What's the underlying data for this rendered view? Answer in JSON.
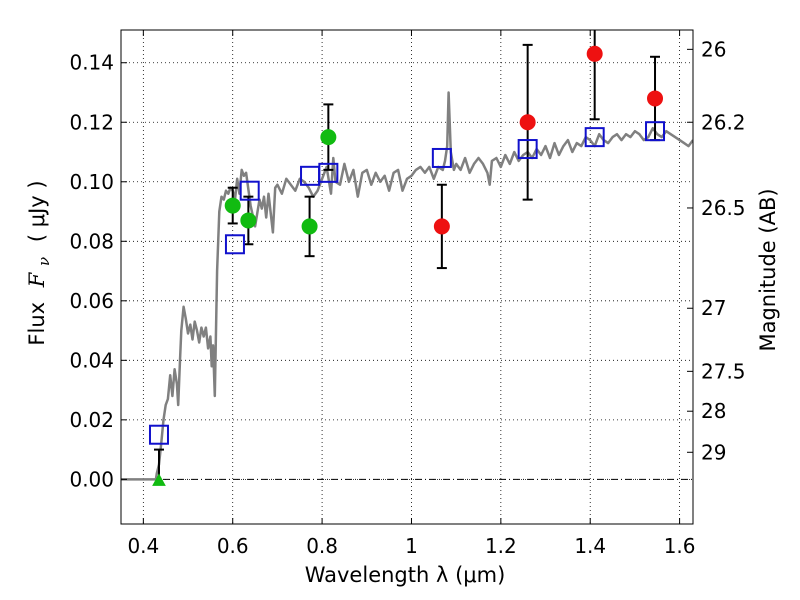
{
  "chart_data": {
    "type": "scatter",
    "title": "",
    "xlabel": "Wavelength  λ (μm)",
    "ylabel_text": "Flux",
    "ylabel_symbol": "F",
    "ylabel_subscript": "ν",
    "ylabel_unit": "( μJy )",
    "y2label": "Magnitude (AB)",
    "xlim": [
      0.35,
      1.63
    ],
    "ylim": [
      -0.015,
      0.151
    ],
    "grid": true,
    "x_ticks": [
      {
        "value": 0.4,
        "label": "0.4"
      },
      {
        "value": 0.6,
        "label": "0.6"
      },
      {
        "value": 0.8,
        "label": "0.8"
      },
      {
        "value": 1.0,
        "label": "1"
      },
      {
        "value": 1.2,
        "label": "1.2"
      },
      {
        "value": 1.4,
        "label": "1.4"
      },
      {
        "value": 1.6,
        "label": "1.6"
      }
    ],
    "y_ticks": [
      {
        "value": 0.0,
        "label": "0.00"
      },
      {
        "value": 0.02,
        "label": "0.02"
      },
      {
        "value": 0.04,
        "label": "0.04"
      },
      {
        "value": 0.06,
        "label": "0.06"
      },
      {
        "value": 0.08,
        "label": "0.08"
      },
      {
        "value": 0.1,
        "label": "0.10"
      },
      {
        "value": 0.12,
        "label": "0.12"
      },
      {
        "value": 0.14,
        "label": "0.14"
      }
    ],
    "y2_ticks": [
      {
        "flux": 0.1445,
        "label": "26"
      },
      {
        "flux": 0.12,
        "label": "26.2"
      },
      {
        "flux": 0.0912,
        "label": "26.5"
      },
      {
        "flux": 0.0575,
        "label": "27"
      },
      {
        "flux": 0.0363,
        "label": "27.5"
      },
      {
        "flux": 0.0229,
        "label": "28"
      },
      {
        "flux": 0.0091,
        "label": "29"
      }
    ],
    "zero_line": 0.0,
    "series": [
      {
        "kind": "model_sed",
        "color": "#808080",
        "x": [
          0.35,
          0.428,
          0.43,
          0.435,
          0.44,
          0.445,
          0.45,
          0.455,
          0.46,
          0.465,
          0.47,
          0.475,
          0.478,
          0.482,
          0.485,
          0.49,
          0.495,
          0.5,
          0.505,
          0.51,
          0.515,
          0.52,
          0.525,
          0.53,
          0.535,
          0.54,
          0.545,
          0.55,
          0.553,
          0.556,
          0.56,
          0.565,
          0.57,
          0.575,
          0.58,
          0.585,
          0.59,
          0.595,
          0.6,
          0.605,
          0.61,
          0.615,
          0.62,
          0.625,
          0.63,
          0.64,
          0.65,
          0.66,
          0.665,
          0.67,
          0.675,
          0.68,
          0.69,
          0.695,
          0.7,
          0.71,
          0.72,
          0.73,
          0.74,
          0.75,
          0.76,
          0.77,
          0.78,
          0.79,
          0.8,
          0.81,
          0.82,
          0.825,
          0.83,
          0.84,
          0.85,
          0.86,
          0.87,
          0.88,
          0.89,
          0.9,
          0.91,
          0.92,
          0.93,
          0.94,
          0.95,
          0.96,
          0.97,
          0.98,
          0.99,
          1.0,
          1.01,
          1.02,
          1.03,
          1.04,
          1.05,
          1.06,
          1.07,
          1.075,
          1.08,
          1.083,
          1.088,
          1.095,
          1.1,
          1.11,
          1.12,
          1.13,
          1.14,
          1.15,
          1.16,
          1.17,
          1.175,
          1.18,
          1.19,
          1.2,
          1.21,
          1.22,
          1.23,
          1.24,
          1.25,
          1.26,
          1.27,
          1.28,
          1.29,
          1.3,
          1.31,
          1.32,
          1.33,
          1.34,
          1.35,
          1.36,
          1.37,
          1.38,
          1.39,
          1.4,
          1.41,
          1.42,
          1.43,
          1.44,
          1.45,
          1.46,
          1.47,
          1.48,
          1.49,
          1.5,
          1.51,
          1.52,
          1.53,
          1.54,
          1.55,
          1.56,
          1.57,
          1.58,
          1.59,
          1.6,
          1.61,
          1.62,
          1.63
        ],
        "y": [
          0.0,
          0.0,
          0.002,
          0.005,
          0.012,
          0.02,
          0.025,
          0.027,
          0.035,
          0.028,
          0.037,
          0.032,
          0.025,
          0.04,
          0.05,
          0.058,
          0.054,
          0.049,
          0.052,
          0.047,
          0.053,
          0.05,
          0.046,
          0.051,
          0.048,
          0.051,
          0.044,
          0.048,
          0.038,
          0.045,
          0.028,
          0.07,
          0.09,
          0.095,
          0.094,
          0.097,
          0.096,
          0.098,
          0.097,
          0.094,
          0.101,
          0.096,
          0.104,
          0.102,
          0.103,
          0.092,
          0.085,
          0.094,
          0.091,
          0.095,
          0.088,
          0.096,
          0.083,
          0.098,
          0.099,
          0.096,
          0.101,
          0.099,
          0.097,
          0.101,
          0.1,
          0.098,
          0.095,
          0.097,
          0.101,
          0.105,
          0.096,
          0.108,
          0.1,
          0.099,
          0.106,
          0.1,
          0.104,
          0.095,
          0.103,
          0.104,
          0.099,
          0.103,
          0.1,
          0.102,
          0.097,
          0.103,
          0.104,
          0.097,
          0.101,
          0.102,
          0.104,
          0.105,
          0.103,
          0.105,
          0.101,
          0.105,
          0.104,
          0.107,
          0.112,
          0.13,
          0.11,
          0.104,
          0.106,
          0.104,
          0.108,
          0.103,
          0.106,
          0.108,
          0.106,
          0.103,
          0.099,
          0.107,
          0.108,
          0.105,
          0.109,
          0.106,
          0.11,
          0.107,
          0.109,
          0.11,
          0.108,
          0.111,
          0.109,
          0.112,
          0.108,
          0.113,
          0.109,
          0.112,
          0.114,
          0.11,
          0.113,
          0.112,
          0.115,
          0.114,
          0.112,
          0.116,
          0.114,
          0.113,
          0.115,
          0.116,
          0.114,
          0.116,
          0.115,
          0.117,
          0.116,
          0.114,
          0.115,
          0.118,
          0.116,
          0.115,
          0.117,
          0.116,
          0.115,
          0.114,
          0.113,
          0.112,
          0.114
        ]
      },
      {
        "kind": "observed_green",
        "color": "#11bb11",
        "points": [
          {
            "x": 0.6,
            "y": 0.092,
            "err": 0.006
          },
          {
            "x": 0.635,
            "y": 0.087,
            "err": 0.008
          },
          {
            "x": 0.772,
            "y": 0.085,
            "err": 0.01
          },
          {
            "x": 0.814,
            "y": 0.115,
            "err": 0.011
          }
        ]
      },
      {
        "kind": "observed_red",
        "color": "#ee1111",
        "points": [
          {
            "x": 1.068,
            "y": 0.085,
            "err": 0.014
          },
          {
            "x": 1.26,
            "y": 0.12,
            "err": 0.026
          },
          {
            "x": 1.41,
            "y": 0.143,
            "err": 0.022
          },
          {
            "x": 1.545,
            "y": 0.128,
            "err": 0.014
          }
        ]
      },
      {
        "kind": "upper_limit_green",
        "color": "#11bb11",
        "points": [
          {
            "x": 0.435,
            "y": 0.0,
            "err": 0.01
          }
        ]
      },
      {
        "kind": "model_synthetic_photometry",
        "color": "#1111cc",
        "points": [
          {
            "x": 0.435,
            "y": 0.015
          },
          {
            "x": 0.605,
            "y": 0.079
          },
          {
            "x": 0.638,
            "y": 0.097
          },
          {
            "x": 0.773,
            "y": 0.102
          },
          {
            "x": 0.814,
            "y": 0.103
          },
          {
            "x": 1.068,
            "y": 0.108
          },
          {
            "x": 1.26,
            "y": 0.111
          },
          {
            "x": 1.41,
            "y": 0.115
          },
          {
            "x": 1.545,
            "y": 0.117
          }
        ]
      }
    ]
  }
}
